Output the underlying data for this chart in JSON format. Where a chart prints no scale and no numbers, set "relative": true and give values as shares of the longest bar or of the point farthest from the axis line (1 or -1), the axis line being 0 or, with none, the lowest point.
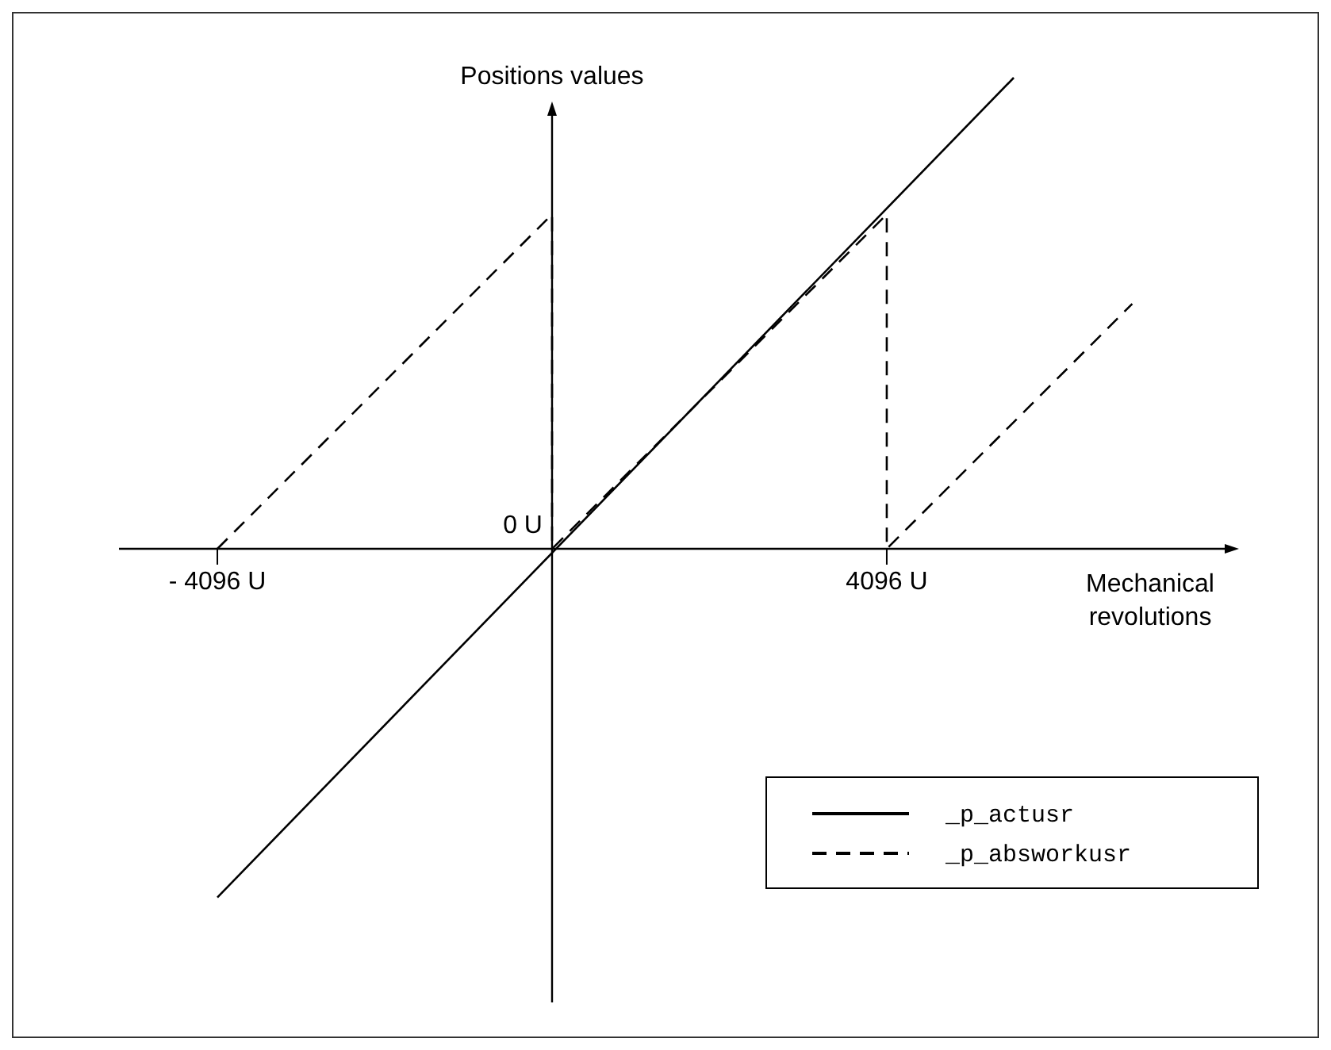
{
  "chart_data": {
    "type": "line",
    "relative": true,
    "xlabel": "Mechanical revolutions",
    "ylabel": "Positions values",
    "xlim": [
      -5300,
      8290
    ],
    "xticks": [
      {
        "value": -4096,
        "label": "- 4096 U"
      },
      {
        "value": 4096,
        "label": "4096 U"
      }
    ],
    "annotations": [
      {
        "text": "0 U",
        "x": 0,
        "y": 0
      }
    ],
    "legend": "bottom right",
    "series": [
      {
        "name": "_p_actusr",
        "color": "#000000",
        "line_style": "solid",
        "x": [
          -4096,
          5650
        ],
        "values": [
          -0.74,
          1
        ]
      },
      {
        "name": "_p_absworkusr",
        "color": "#000000",
        "line_style": "dashed",
        "x": [
          -4096,
          0,
          0,
          4096,
          4096,
          7100
        ],
        "values": [
          0,
          0.71,
          0,
          0.71,
          0,
          0.52
        ]
      }
    ]
  }
}
